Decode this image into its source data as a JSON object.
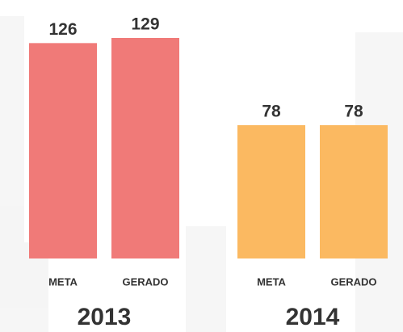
{
  "chart_data": {
    "type": "bar",
    "groups": [
      {
        "name": "2013",
        "color": "#f07a78",
        "categories": [
          "META",
          "GERADO"
        ],
        "values": [
          126,
          129
        ]
      },
      {
        "name": "2014",
        "color": "#fbb961",
        "categories": [
          "META",
          "GERADO"
        ],
        "values": [
          78,
          78
        ]
      }
    ]
  }
}
